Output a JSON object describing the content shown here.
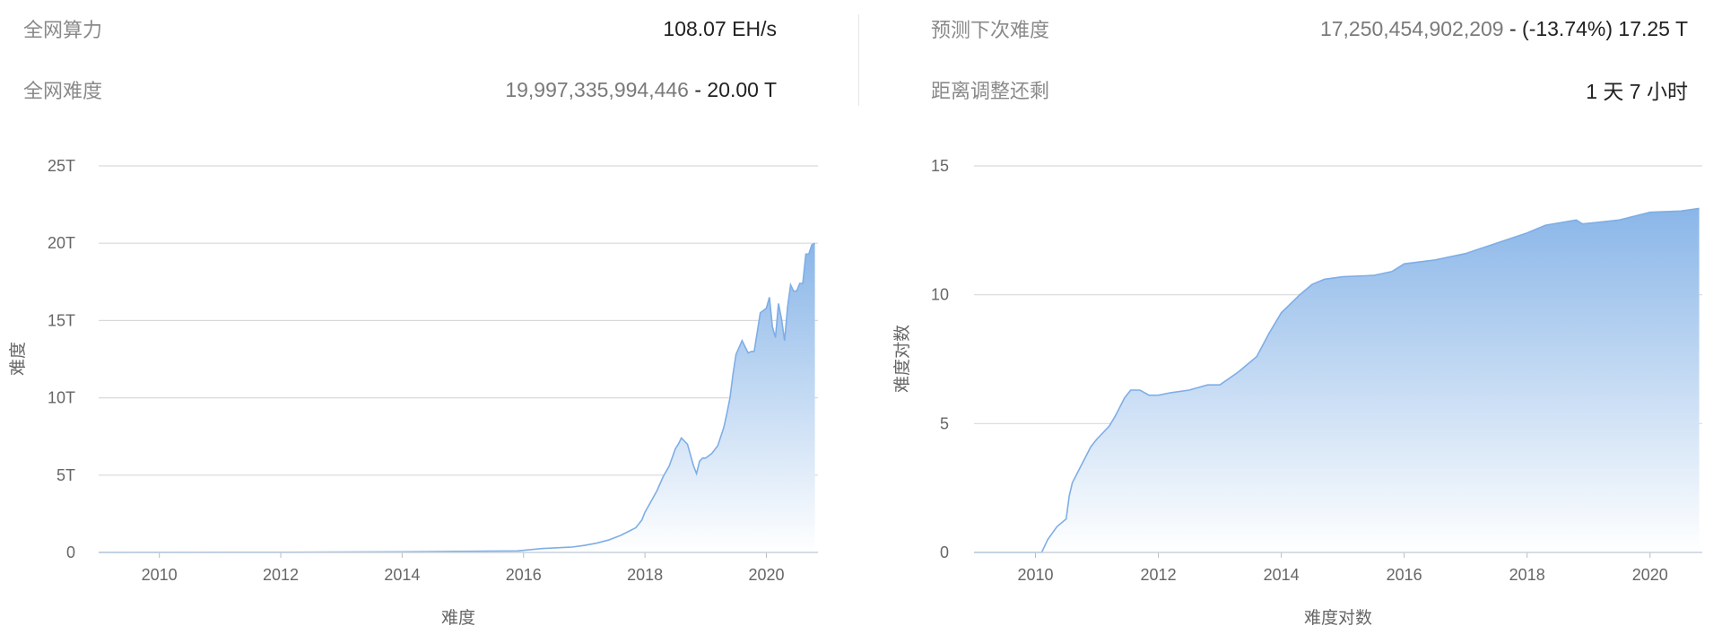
{
  "stats": {
    "hashrate": {
      "label": "全网算力",
      "value": "108.07 EH/s"
    },
    "difficulty": {
      "label": "全网难度",
      "number": "19,997,335,994,446",
      "suffix": "- 20.00 T"
    },
    "next_difficulty": {
      "label": "预测下次难度",
      "number": "17,250,454,902,209",
      "suffix": "- (-13.74%) 17.25 T"
    },
    "time_left": {
      "label": "距离调整还剩",
      "value": "1 天 7 小时"
    }
  },
  "colors": {
    "fill_top": "#8ab6e8",
    "fill_bottom": "#ffffff",
    "line": "#7eaee6",
    "grid": "#d9d9d9"
  },
  "chart_data": [
    {
      "type": "area",
      "ylabel": "难度",
      "xlabel": "难度",
      "xlim": [
        2009.0,
        2020.85
      ],
      "ylim": [
        0,
        25
      ],
      "y_unit": "T",
      "x_ticks": [
        2010,
        2012,
        2014,
        2016,
        2018,
        2020
      ],
      "y_ticks": [
        0,
        5,
        10,
        15,
        20,
        25
      ],
      "y_tick_labels": [
        "0",
        "5T",
        "10T",
        "15T",
        "20T",
        "25T"
      ],
      "grid": true,
      "x": [
        2009.0,
        2012.0,
        2014.0,
        2015.0,
        2015.9,
        2016.3,
        2016.8,
        2017.0,
        2017.2,
        2017.4,
        2017.6,
        2017.75,
        2017.85,
        2017.95,
        2018.0,
        2018.1,
        2018.2,
        2018.3,
        2018.4,
        2018.5,
        2018.55,
        2018.6,
        2018.7,
        2018.8,
        2018.85,
        2018.9,
        2018.95,
        2019.0,
        2019.1,
        2019.2,
        2019.3,
        2019.35,
        2019.4,
        2019.45,
        2019.5,
        2019.6,
        2019.7,
        2019.75,
        2019.8,
        2019.9,
        2020.0,
        2020.05,
        2020.1,
        2020.15,
        2020.2,
        2020.25,
        2020.3,
        2020.35,
        2020.4,
        2020.45,
        2020.5,
        2020.55,
        2020.6,
        2020.65,
        2020.7,
        2020.75,
        2020.8
      ],
      "values": [
        0,
        0.01,
        0.04,
        0.07,
        0.1,
        0.25,
        0.35,
        0.45,
        0.6,
        0.8,
        1.1,
        1.4,
        1.6,
        2.1,
        2.6,
        3.3,
        4.0,
        4.9,
        5.6,
        6.7,
        7.0,
        7.4,
        7.0,
        5.6,
        5.1,
        5.9,
        6.1,
        6.1,
        6.4,
        6.9,
        8.1,
        9.0,
        10.0,
        11.5,
        12.8,
        13.7,
        12.9,
        13.0,
        13.0,
        15.5,
        15.8,
        16.5,
        14.6,
        13.9,
        16.1,
        15.1,
        13.7,
        15.9,
        17.3,
        16.9,
        16.9,
        17.4,
        17.4,
        19.3,
        19.3,
        19.9,
        20.0
      ]
    },
    {
      "type": "area",
      "ylabel": "难度对数",
      "xlabel": "难度对数",
      "xlim": [
        2009.0,
        2020.85
      ],
      "ylim": [
        0,
        15
      ],
      "x_ticks": [
        2010,
        2012,
        2014,
        2016,
        2018,
        2020
      ],
      "y_ticks": [
        0,
        5,
        10,
        15
      ],
      "y_tick_labels": [
        "0",
        "5",
        "10",
        "15"
      ],
      "grid": true,
      "x": [
        2009.0,
        2010.1,
        2010.2,
        2010.35,
        2010.5,
        2010.55,
        2010.6,
        2010.75,
        2010.9,
        2011.0,
        2011.2,
        2011.3,
        2011.45,
        2011.55,
        2011.7,
        2011.85,
        2012.0,
        2012.2,
        2012.5,
        2012.8,
        2013.0,
        2013.3,
        2013.6,
        2013.8,
        2014.0,
        2014.3,
        2014.5,
        2014.7,
        2015.0,
        2015.5,
        2015.8,
        2016.0,
        2016.5,
        2017.0,
        2017.5,
        2018.0,
        2018.3,
        2018.8,
        2018.9,
        2019.5,
        2020.0,
        2020.5,
        2020.8
      ],
      "values": [
        0,
        0,
        0.5,
        1.0,
        1.3,
        2.2,
        2.7,
        3.4,
        4.1,
        4.4,
        4.9,
        5.3,
        6.0,
        6.3,
        6.3,
        6.1,
        6.1,
        6.2,
        6.3,
        6.5,
        6.5,
        7.0,
        7.6,
        8.5,
        9.3,
        10.0,
        10.4,
        10.6,
        10.7,
        10.75,
        10.9,
        11.2,
        11.35,
        11.6,
        12.0,
        12.4,
        12.7,
        12.9,
        12.75,
        12.9,
        13.2,
        13.25,
        13.35
      ]
    }
  ]
}
